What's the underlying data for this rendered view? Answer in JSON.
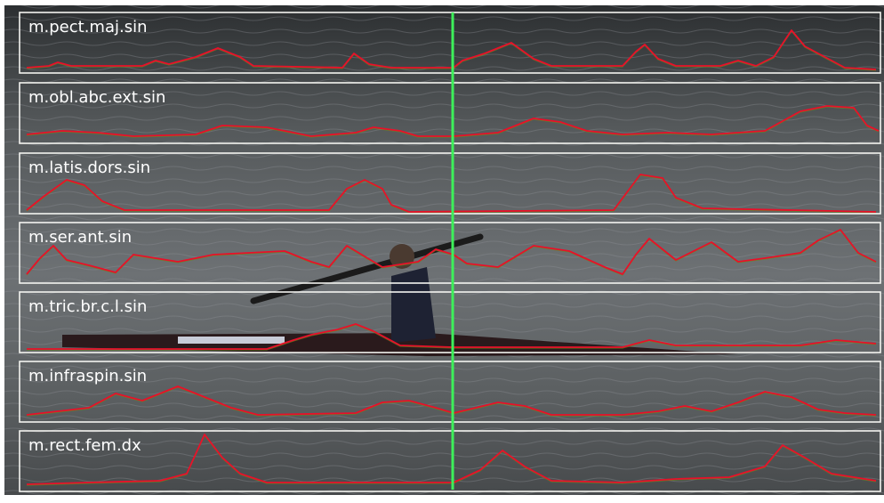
{
  "panels": [
    {
      "label": "m.pect.maj.sin"
    },
    {
      "label": "m.obl.abc.ext.sin"
    },
    {
      "label": "m.latis.dors.sin"
    },
    {
      "label": "m.ser.ant.sin"
    },
    {
      "label": "m.tric.br.c.l.sin"
    },
    {
      "label": "m.infraspin.sin"
    },
    {
      "label": "m.rect.fem.dx"
    }
  ]
}
